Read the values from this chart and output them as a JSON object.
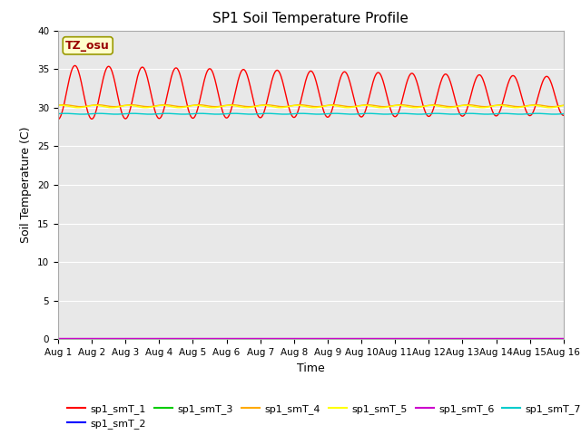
{
  "title": "SP1 Soil Temperature Profile",
  "xlabel": "Time",
  "ylabel": "Soil Temperature (C)",
  "ylim": [
    0,
    40
  ],
  "yticks": [
    0,
    5,
    10,
    15,
    20,
    25,
    30,
    35,
    40
  ],
  "xtick_labels": [
    "Aug 1",
    "Aug 2",
    "Aug 3",
    "Aug 4",
    "Aug 5",
    "Aug 6",
    "Aug 7",
    "Aug 8",
    "Aug 9",
    "Aug 10",
    "Aug 11",
    "Aug 12",
    "Aug 13",
    "Aug 14",
    "Aug 15",
    "Aug 16"
  ],
  "annotation_text": "TZ_osu",
  "annotation_bbox_facecolor": "#ffffcc",
  "annotation_bbox_edgecolor": "#999900",
  "annotation_text_color": "#990000",
  "bg_color": "#e8e8e8",
  "colors": {
    "sp1_smT_1": "#ff0000",
    "sp1_smT_2": "#0000ff",
    "sp1_smT_3": "#00cc00",
    "sp1_smT_4": "#ffaa00",
    "sp1_smT_5": "#ffff00",
    "sp1_smT_6": "#cc00cc",
    "sp1_smT_7": "#00cccc"
  },
  "title_fontsize": 11,
  "tick_fontsize": 7.5,
  "label_fontsize": 9,
  "legend_fontsize": 8,
  "fig_width": 6.4,
  "fig_height": 4.8,
  "dpi": 100
}
